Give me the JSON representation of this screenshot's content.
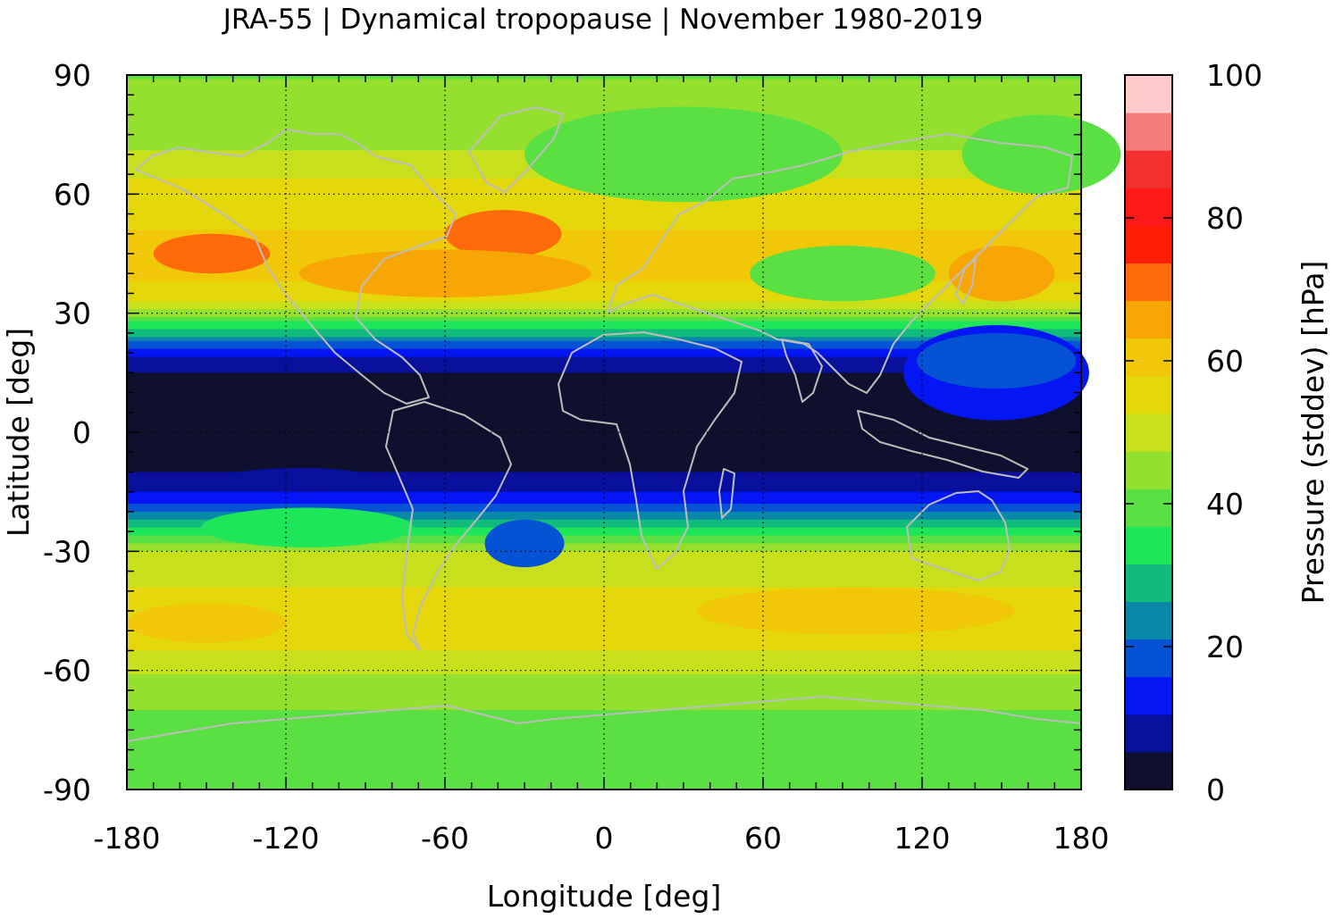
{
  "chart_data": {
    "type": "heatmap",
    "title": "JRA-55 | Dynamical tropopause | November 1980-2019",
    "xlabel": "Longitude [deg]",
    "ylabel": "Latitude [deg]",
    "colorbar_label": "Pressure (stddev) [hPa]",
    "xlim": [
      -180,
      180
    ],
    "ylim": [
      -90,
      90
    ],
    "x_ticks": [
      -180,
      -120,
      -60,
      0,
      60,
      120,
      180
    ],
    "x_tick_labels": [
      "-180",
      "-120",
      "-60",
      "0",
      "60",
      "120",
      "180"
    ],
    "y_ticks": [
      90,
      60,
      30,
      0,
      -30,
      -60,
      -90
    ],
    "y_tick_labels": [
      "90",
      "60",
      "30",
      "0",
      "-30",
      "-60",
      "-90"
    ],
    "colorbar_range": [
      0,
      100
    ],
    "colorbar_ticks": [
      100,
      80,
      60,
      40,
      20,
      0
    ],
    "colorbar_tick_labels": [
      "100",
      "80",
      "60",
      "40",
      "20",
      "0"
    ],
    "grid": true,
    "coastlines": true,
    "color_levels": [
      "#0f0f2e",
      "#08109c",
      "#0516f5",
      "#0552d4",
      "#0a88a8",
      "#10bb7c",
      "#1de65a",
      "#5ae042",
      "#95e02e",
      "#c8e01c",
      "#e4d80a",
      "#f0c808",
      "#f7a606",
      "#ff6a0a",
      "#ff1e05",
      "#ff1919",
      "#f23030",
      "#f57a7a",
      "#ffcaca"
    ],
    "latitude_profile_hPa": [
      [
        90,
        42
      ],
      [
        75,
        45
      ],
      [
        60,
        55
      ],
      [
        45,
        60
      ],
      [
        35,
        57
      ],
      [
        30,
        45
      ],
      [
        25,
        28
      ],
      [
        20,
        12
      ],
      [
        15,
        5
      ],
      [
        0,
        2
      ],
      [
        -10,
        5
      ],
      [
        -15,
        10
      ],
      [
        -20,
        20
      ],
      [
        -25,
        35
      ],
      [
        -30,
        48
      ],
      [
        -40,
        53
      ],
      [
        -50,
        57
      ],
      [
        -60,
        48
      ],
      [
        -70,
        42
      ],
      [
        -80,
        38
      ],
      [
        -90,
        40
      ]
    ]
  }
}
